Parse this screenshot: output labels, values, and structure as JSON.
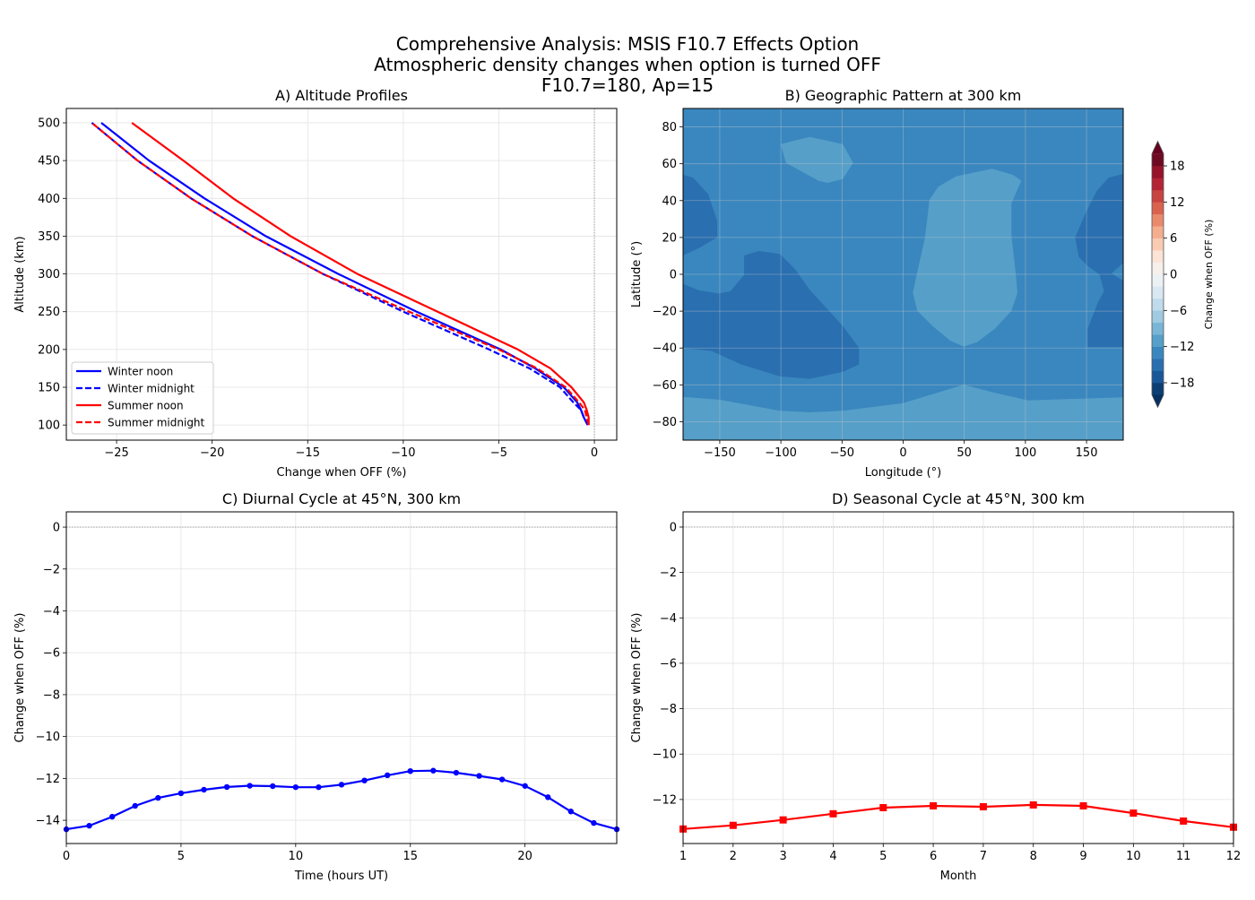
{
  "suptitle": [
    "Comprehensive Analysis: MSIS F10.7 Effects Option",
    "Atmospheric density changes when option is turned OFF",
    "F10.7=180, Ap=15"
  ],
  "chart_data": [
    {
      "id": "A",
      "type": "line",
      "title": "A) Altitude Profiles",
      "xlabel": "Change when OFF (%)",
      "ylabel": "Altitude (km)",
      "xlim": [
        -27.63,
        1.17
      ],
      "ylim": [
        80,
        519
      ],
      "xticks": [
        -25,
        -20,
        -15,
        -10,
        -5,
        0
      ],
      "yticks": [
        100,
        150,
        200,
        250,
        300,
        350,
        400,
        450,
        500
      ],
      "grid": true,
      "reference_line": {
        "axis": "x",
        "value": 0,
        "style": "dotted",
        "color": "#999999"
      },
      "legend": "lower-left",
      "altitudes": [
        100,
        110,
        120,
        130,
        150,
        175,
        200,
        250,
        300,
        350,
        400,
        450,
        500
      ],
      "series": [
        {
          "name": "Winter noon",
          "color": "#0000ff",
          "dash": false,
          "values": [
            -0.35,
            -0.55,
            -0.7,
            -0.9,
            -1.6,
            -3.1,
            -4.9,
            -9.3,
            -13.4,
            -17.2,
            -20.4,
            -23.3,
            -25.8
          ]
        },
        {
          "name": "Winter midnight",
          "color": "#0000ff",
          "dash": true,
          "values": [
            -0.35,
            -0.55,
            -0.7,
            -1.1,
            -1.8,
            -3.4,
            -5.5,
            -10.0,
            -14.2,
            -17.9,
            -21.1,
            -23.9,
            -26.3
          ]
        },
        {
          "name": "Summer noon",
          "color": "#ff0000",
          "dash": false,
          "values": [
            -0.3,
            -0.3,
            -0.4,
            -0.55,
            -1.2,
            -2.3,
            -4.0,
            -8.2,
            -12.4,
            -15.9,
            -18.9,
            -21.5,
            -24.2
          ]
        },
        {
          "name": "Summer midnight",
          "color": "#ff0000",
          "dash": true,
          "values": [
            -0.3,
            -0.4,
            -0.5,
            -0.8,
            -1.5,
            -3.0,
            -5.0,
            -9.7,
            -14.2,
            -17.9,
            -21.1,
            -23.9,
            -26.3
          ]
        }
      ]
    },
    {
      "id": "B",
      "type": "contour",
      "title": "B) Geographic Pattern at 300 km",
      "xlabel": "Longitude (°)",
      "ylabel": "Latitude (°)",
      "xlim": [
        -180,
        180
      ],
      "ylim": [
        -90,
        90
      ],
      "xticks": [
        -150,
        -100,
        -50,
        0,
        50,
        100,
        150
      ],
      "yticks": [
        -80,
        -60,
        -40,
        -20,
        0,
        20,
        40,
        60,
        80
      ],
      "grid": true,
      "background_level": [
        -14,
        -12
      ],
      "regions": [
        {
          "level": [
            -12,
            -10
          ],
          "points": [
            [
              -100.1,
              70.7
            ],
            [
              -76.4,
              74.6
            ],
            [
              -49.5,
              70.7
            ],
            [
              -40.9,
              60.5
            ],
            [
              -49.5,
              51.6
            ],
            [
              -61.7,
              49.6
            ],
            [
              -69.1,
              50.7
            ],
            [
              -95.9,
              60.5
            ]
          ]
        },
        {
          "level": [
            -12,
            -10
          ],
          "points": [
            [
              21.4,
              40.2
            ],
            [
              28.7,
              47.5
            ],
            [
              43.4,
              53.2
            ],
            [
              72.7,
              57.3
            ],
            [
              89.8,
              54.0
            ],
            [
              96.6,
              50.8
            ],
            [
              88.6,
              38.6
            ],
            [
              88.6,
              20.8
            ],
            [
              92.2,
              -0.3
            ],
            [
              93.5,
              -10
            ],
            [
              88.6,
              -19.8
            ],
            [
              75.1,
              -29.5
            ],
            [
              60.5,
              -36.8
            ],
            [
              49.5,
              -39.2
            ],
            [
              38.5,
              -36
            ],
            [
              23.8,
              -27.9
            ],
            [
              11.6,
              -19.8
            ],
            [
              7.9,
              -10
            ],
            [
              11.6,
              1.3
            ],
            [
              17.7,
              19.2
            ],
            [
              20.1,
              32.1
            ]
          ]
        },
        {
          "level": [
            -12,
            -10
          ],
          "points": [
            [
              -180,
              -66.5
            ],
            [
              -149.7,
              -68.1
            ],
            [
              -100.8,
              -74.1
            ],
            [
              -76.4,
              -74.9
            ],
            [
              -49.5,
              -74.1
            ],
            [
              -0.6,
              -70
            ],
            [
              49.5,
              -60
            ],
            [
              75.1,
              -64.3
            ],
            [
              102,
              -68.4
            ],
            [
              180,
              -66.8
            ],
            [
              180,
              -90
            ],
            [
              -180,
              -90
            ]
          ]
        },
        {
          "level": [
            -16,
            -14
          ],
          "points": [
            [
              -180,
              54
            ],
            [
              -171.7,
              52.4
            ],
            [
              -159.5,
              43.5
            ],
            [
              -152.1,
              28.9
            ],
            [
              -152.1,
              20
            ],
            [
              -166.8,
              14.3
            ],
            [
              -180,
              10.2
            ]
          ]
        },
        {
          "level": [
            -16,
            -14
          ],
          "points": [
            [
              -180,
              -5.2
            ],
            [
              -166.8,
              -8.7
            ],
            [
              -150.9,
              -10.4
            ],
            [
              -141.2,
              -9.2
            ],
            [
              -130.1,
              -0.3
            ],
            [
              -130.1,
              10.2
            ],
            [
              -117.9,
              12.7
            ],
            [
              -100.8,
              11
            ],
            [
              -88.6,
              2.9
            ],
            [
              -76.4,
              -8.4
            ],
            [
              -49.5,
              -27.9
            ],
            [
              -36.1,
              -40
            ],
            [
              -36.1,
              -48.9
            ],
            [
              -49.5,
              -53
            ],
            [
              -76.4,
              -56.7
            ],
            [
              -100.8,
              -55.4
            ],
            [
              -132.6,
              -48.9
            ],
            [
              -157,
              -41.6
            ],
            [
              -180,
              -40
            ]
          ]
        },
        {
          "level": [
            -16,
            -14
          ],
          "points": [
            [
              180,
              54.5
            ],
            [
              168,
              52.4
            ],
            [
              158.2,
              45.1
            ],
            [
              148.5,
              32.1
            ],
            [
              140.6,
              20
            ],
            [
              143.6,
              9.4
            ],
            [
              150.9,
              4.6
            ],
            [
              160.7,
              -0.3
            ],
            [
              164.3,
              -9.2
            ],
            [
              159.5,
              -14.9
            ],
            [
              151,
              -29.5
            ],
            [
              151,
              -39.5
            ],
            [
              180,
              -39.5
            ],
            [
              180,
              -3.5
            ],
            [
              170.4,
              0.5
            ],
            [
              180,
              6.2
            ]
          ]
        }
      ],
      "colorbar": {
        "label": "Change when OFF (%)",
        "levels_min": -20,
        "levels_max": 20,
        "level_step": 2,
        "ticks": [
          -18,
          -12,
          -6,
          0,
          6,
          12,
          18
        ],
        "extend": "both",
        "under_color": "#053061",
        "over_color": "#67001f",
        "colors": [
          "#0c3d73",
          "#1a5799",
          "#2a6fb0",
          "#3a87bf",
          "#569fc9",
          "#7ab5d6",
          "#9fcae1",
          "#c0dbeb",
          "#d9e8f2",
          "#ecf1f4",
          "#f6efeb",
          "#fbe3d6",
          "#f9cbb3",
          "#f4ad8e",
          "#e98a6d",
          "#d9634f",
          "#c84441",
          "#b42434",
          "#961329",
          "#6d0a22"
        ]
      }
    },
    {
      "id": "C",
      "type": "line",
      "title": "C) Diurnal Cycle at 45°N, 300 km",
      "xlabel": "Time (hours UT)",
      "ylabel": "Change when OFF (%)",
      "xlim": [
        0,
        24
      ],
      "ylim": [
        -15.11,
        0.73
      ],
      "xticks": [
        0,
        5,
        10,
        15,
        20
      ],
      "yticks": [
        -14,
        -12,
        -10,
        -8,
        -6,
        -4,
        -2,
        0
      ],
      "grid": true,
      "reference_line": {
        "axis": "y",
        "value": 0,
        "style": "dotted",
        "color": "#999999"
      },
      "marker": "circle",
      "color": "#0000ff",
      "x": [
        0,
        1,
        2,
        3,
        4,
        5,
        6,
        7,
        8,
        9,
        10,
        11,
        12,
        13,
        14,
        15,
        16,
        17,
        18,
        19,
        20,
        21,
        22,
        23,
        24
      ],
      "y": [
        -14.43,
        -14.26,
        -13.83,
        -13.31,
        -12.93,
        -12.71,
        -12.54,
        -12.41,
        -12.35,
        -12.37,
        -12.42,
        -12.42,
        -12.3,
        -12.1,
        -11.85,
        -11.65,
        -11.63,
        -11.73,
        -11.88,
        -12.05,
        -12.36,
        -12.9,
        -13.58,
        -14.13,
        -14.43
      ]
    },
    {
      "id": "D",
      "type": "line",
      "title": "D) Seasonal Cycle at 45°N, 300 km",
      "xlabel": "Month",
      "ylabel": "Change when OFF (%)",
      "xlim": [
        1,
        12
      ],
      "ylim": [
        -13.94,
        0.67
      ],
      "xticks": [
        1,
        2,
        3,
        4,
        5,
        6,
        7,
        8,
        9,
        10,
        11,
        12
      ],
      "yticks": [
        -12,
        -10,
        -8,
        -6,
        -4,
        -2,
        0
      ],
      "grid": true,
      "reference_line": {
        "axis": "y",
        "value": 0,
        "style": "dotted",
        "color": "#999999"
      },
      "marker": "square",
      "color": "#ff0000",
      "x": [
        1,
        2,
        3,
        4,
        5,
        6,
        7,
        8,
        9,
        10,
        11,
        12
      ],
      "y": [
        -13.3,
        -13.14,
        -12.9,
        -12.63,
        -12.36,
        -12.28,
        -12.32,
        -12.24,
        -12.28,
        -12.6,
        -12.95,
        -13.22
      ]
    }
  ]
}
